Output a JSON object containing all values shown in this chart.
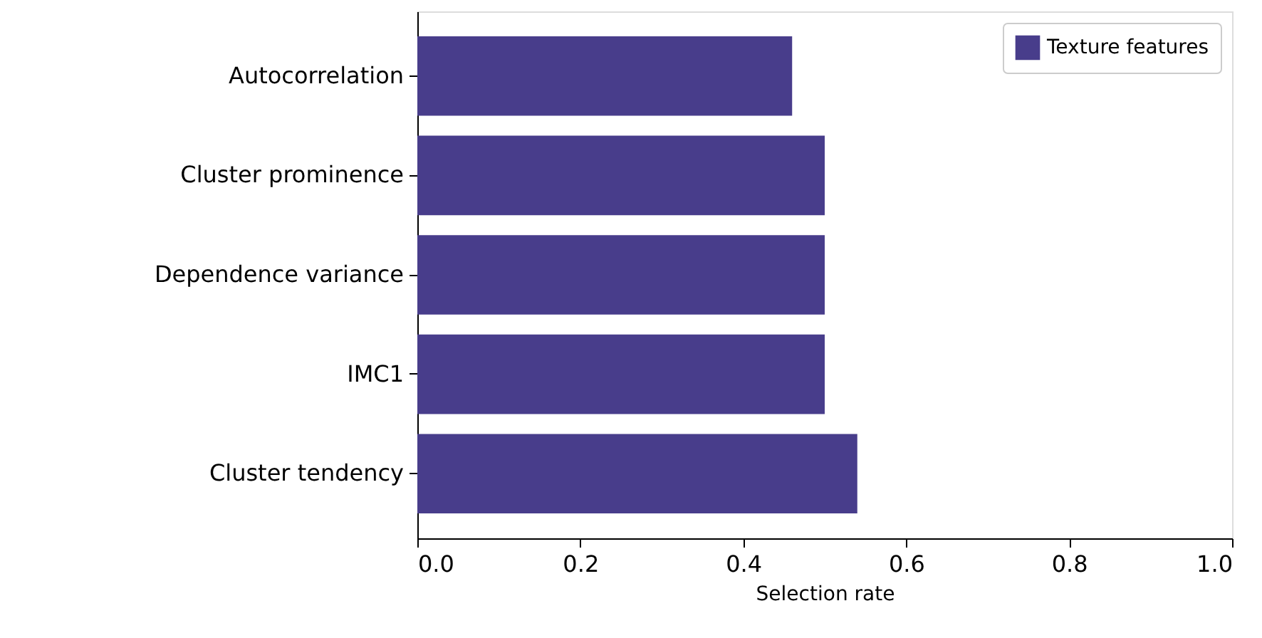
{
  "chart_data": {
    "type": "bar",
    "orientation": "horizontal",
    "xlabel": "Selection rate",
    "categories": [
      "Autocorrelation",
      "Cluster prominence",
      "Dependence variance",
      "IMC1",
      "Cluster tendency"
    ],
    "series": [
      {
        "name": "Texture features",
        "color": "#483d8b",
        "values": [
          0.46,
          0.5,
          0.5,
          0.5,
          0.54
        ]
      }
    ],
    "xlim": [
      0.0,
      1.0
    ],
    "xticks": [
      {
        "value": 0.0,
        "label": "0.0"
      },
      {
        "value": 0.2,
        "label": "0.2"
      },
      {
        "value": 0.4,
        "label": "0.4"
      },
      {
        "value": 0.6,
        "label": "0.6"
      },
      {
        "value": 0.8,
        "label": "0.8"
      },
      {
        "value": 1.0,
        "label": "1.0"
      }
    ],
    "grid": false,
    "legend": "top right"
  }
}
